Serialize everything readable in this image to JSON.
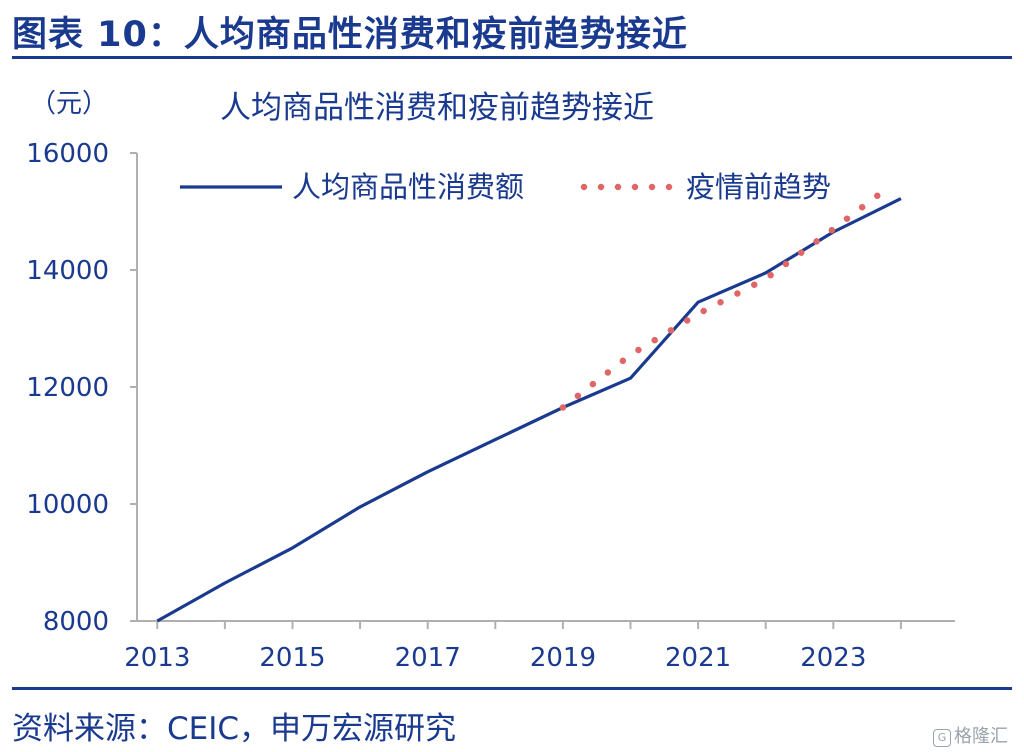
{
  "figure": {
    "title": "图表 10：人均商品性消费和疫前趋势接近",
    "source": "资料来源：CEIC，申万宏源研究",
    "watermark": "格隆汇"
  },
  "colors": {
    "accent": "#1a3a8f",
    "actual_line": "#1a3a8f",
    "trend_dots": "#e06666",
    "axis": "#b0b0b0"
  },
  "chart_data": {
    "type": "line",
    "title": "人均商品性消费和疫前趋势接近",
    "unit_label": "（元）",
    "xlabel": "",
    "ylabel": "",
    "xlim": [
      2012.7,
      2024.8
    ],
    "ylim": [
      8000,
      16000
    ],
    "yticks": [
      8000,
      10000,
      12000,
      14000,
      16000
    ],
    "xticks": [
      2013,
      2015,
      2017,
      2019,
      2021,
      2023
    ],
    "grid": false,
    "legend_position": "top",
    "series": [
      {
        "name": "人均商品性消费额",
        "style": "solid",
        "points": [
          [
            2013.0,
            8000
          ],
          [
            2014.0,
            8650
          ],
          [
            2015.0,
            9250
          ],
          [
            2016.0,
            9950
          ],
          [
            2017.0,
            10550
          ],
          [
            2018.0,
            11100
          ],
          [
            2019.0,
            11650
          ],
          [
            2020.0,
            12150
          ],
          [
            2021.0,
            13450
          ],
          [
            2022.0,
            13950
          ],
          [
            2023.0,
            14650
          ],
          [
            2024.0,
            15220
          ]
        ]
      },
      {
        "name": "疫情前趋势",
        "style": "dotted",
        "points": [
          [
            2019.0,
            11650
          ],
          [
            2020.0,
            12550
          ],
          [
            2021.0,
            13250
          ],
          [
            2022.0,
            13850
          ],
          [
            2023.0,
            14700
          ],
          [
            2023.8,
            15400
          ]
        ]
      }
    ]
  }
}
